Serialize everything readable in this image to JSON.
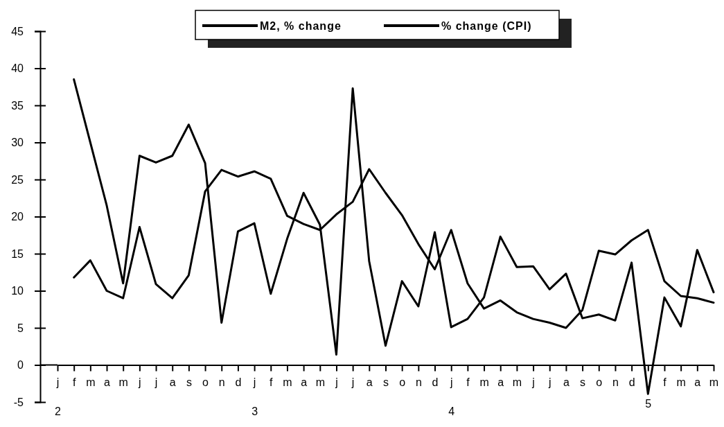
{
  "chart_data": {
    "type": "line",
    "categories": [
      "j\n2",
      "f",
      "m",
      "a",
      "m",
      "j",
      "j",
      "a",
      "s",
      "o",
      "n",
      "d",
      "j\n3",
      "f",
      "m",
      "a",
      "m",
      "j",
      "j",
      "a",
      "s",
      "o",
      "n",
      "d",
      "j\n4",
      "f",
      "m",
      "a",
      "m",
      "j",
      "j",
      "a",
      "s",
      "o",
      "n",
      "d",
      "\n5",
      "f",
      "m",
      "a",
      "m"
    ],
    "series": [
      {
        "name": "M2, % change",
        "color": "#000000",
        "values": [
          null,
          38.5,
          30,
          21.5,
          11,
          28.2,
          27.3,
          28.2,
          32.4,
          27.2,
          5.7,
          18,
          19.1,
          9.6,
          17,
          23.2,
          18.9,
          1.4,
          37.3,
          14,
          2.6,
          11.3,
          7.9,
          17.9,
          5.1,
          6.2,
          9.1,
          17.3,
          13.2,
          13.3,
          10.2,
          12.3,
          6.3,
          6.8,
          6,
          13.8,
          -3.9,
          9.1,
          5.2,
          15.5,
          9.8
        ]
      },
      {
        "name": "% change (CPI)",
        "color": "#000000",
        "values": [
          null,
          11.8,
          14.1,
          10,
          9,
          18.6,
          10.9,
          9,
          12.1,
          23.4,
          26.3,
          25.4,
          26.1,
          25.1,
          20.1,
          19,
          18.2,
          20.3,
          22,
          26.4,
          23.2,
          20.2,
          16.3,
          12.9,
          18.2,
          11,
          7.6,
          8.7,
          7.1,
          6.2,
          5.7,
          5,
          7.4,
          15.4,
          14.9,
          16.8,
          18.2,
          11.3,
          9.3,
          9,
          8.4
        ]
      }
    ],
    "ylim": [
      -5,
      45
    ],
    "yticks": [
      -5,
      0,
      5,
      10,
      15,
      20,
      25,
      30,
      35,
      40,
      45
    ],
    "legend": "top",
    "grid": false,
    "marker": "none",
    "line_style": "solid"
  }
}
